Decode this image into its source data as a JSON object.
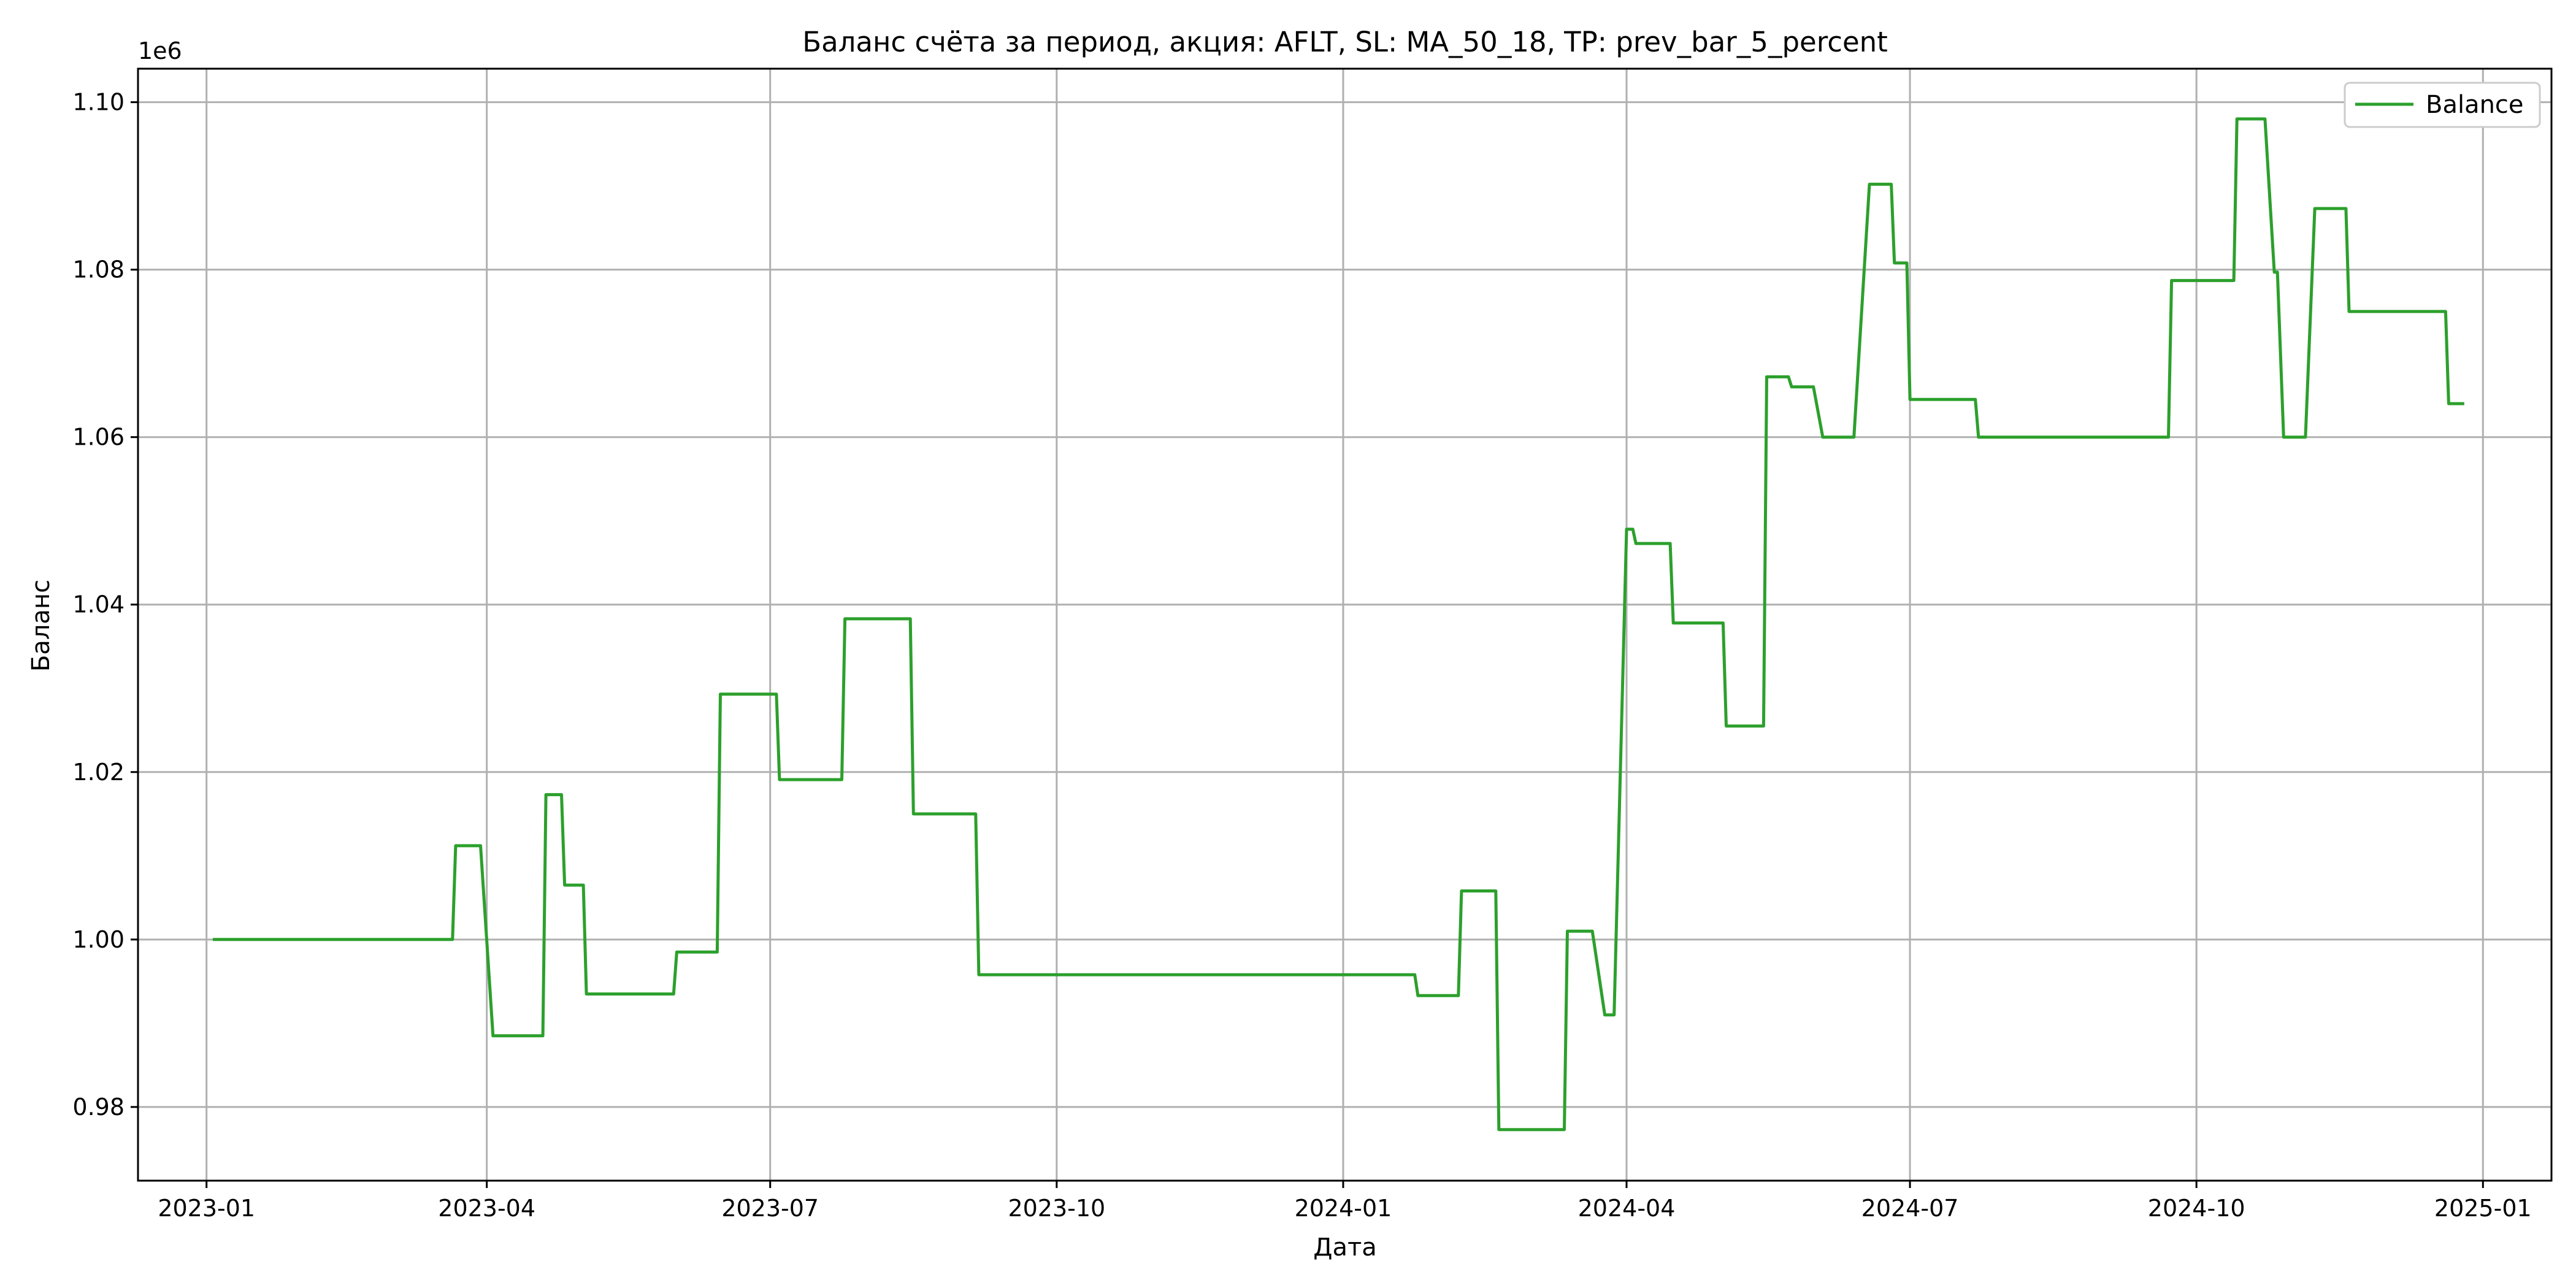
{
  "chart_data": {
    "type": "line",
    "title": "Баланс счёта за период, акция: AFLT, SL: MA_50_18, TP: prev_bar_5_percent",
    "xlabel": "Дата",
    "ylabel": "Баланс",
    "y_offset_label": "1e6",
    "x_ticks": [
      "2023-01",
      "2023-04",
      "2023-07",
      "2023-10",
      "2024-01",
      "2024-04",
      "2024-07",
      "2024-10",
      "2025-01"
    ],
    "y_ticks": [
      "0.98",
      "1.00",
      "1.02",
      "1.04",
      "1.06",
      "1.08",
      "1.10"
    ],
    "ylim": [
      0.9712,
      1.104
    ],
    "xlim": [
      "2022-12-10",
      "2025-01-23"
    ],
    "grid": true,
    "legend": {
      "placement": "top-right"
    },
    "series": [
      {
        "name": "Balance",
        "color": "#2ca02c",
        "points": [
          [
            "2023-01-03",
            1.0
          ],
          [
            "2023-03-21",
            1.0
          ],
          [
            "2023-03-22",
            1.0112
          ],
          [
            "2023-03-30",
            1.0112
          ],
          [
            "2023-04-03",
            0.9885
          ],
          [
            "2023-04-19",
            0.9885
          ],
          [
            "2023-04-20",
            1.0173
          ],
          [
            "2023-04-25",
            1.0173
          ],
          [
            "2023-04-26",
            1.0065
          ],
          [
            "2023-05-02",
            1.0065
          ],
          [
            "2023-05-03",
            0.9935
          ],
          [
            "2023-05-31",
            0.9935
          ],
          [
            "2023-06-01",
            0.9985
          ],
          [
            "2023-06-14",
            0.9985
          ],
          [
            "2023-06-15",
            1.0293
          ],
          [
            "2023-07-03",
            1.0293
          ],
          [
            "2023-07-04",
            1.0191
          ],
          [
            "2023-07-24",
            1.0191
          ],
          [
            "2023-07-25",
            1.0383
          ],
          [
            "2023-08-15",
            1.0383
          ],
          [
            "2023-08-16",
            1.015
          ],
          [
            "2023-09-05",
            1.015
          ],
          [
            "2023-09-06",
            0.9958
          ],
          [
            "2024-01-24",
            0.9958
          ],
          [
            "2024-01-25",
            0.9933
          ],
          [
            "2024-02-07",
            0.9933
          ],
          [
            "2024-02-08",
            1.0058
          ],
          [
            "2024-02-19",
            1.0058
          ],
          [
            "2024-02-20",
            0.9773
          ],
          [
            "2024-03-12",
            0.9773
          ],
          [
            "2024-03-13",
            1.001
          ],
          [
            "2024-03-21",
            1.001
          ],
          [
            "2024-03-25",
            0.991
          ],
          [
            "2024-03-28",
            0.991
          ],
          [
            "2024-04-01",
            1.049
          ],
          [
            "2024-04-03",
            1.049
          ],
          [
            "2024-04-04",
            1.0473
          ],
          [
            "2024-04-15",
            1.0473
          ],
          [
            "2024-04-16",
            1.0378
          ],
          [
            "2024-05-02",
            1.0378
          ],
          [
            "2024-05-03",
            1.0255
          ],
          [
            "2024-05-15",
            1.0255
          ],
          [
            "2024-05-16",
            1.0672
          ],
          [
            "2024-05-23",
            1.0672
          ],
          [
            "2024-05-24",
            1.066
          ],
          [
            "2024-05-31",
            1.066
          ],
          [
            "2024-06-03",
            1.06
          ],
          [
            "2024-06-13",
            1.06
          ],
          [
            "2024-06-18",
            1.0902
          ],
          [
            "2024-06-25",
            1.0902
          ],
          [
            "2024-06-26",
            1.0808
          ],
          [
            "2024-06-30",
            1.0808
          ],
          [
            "2024-07-01",
            1.0645
          ],
          [
            "2024-07-22",
            1.0645
          ],
          [
            "2024-07-23",
            1.06
          ],
          [
            "2024-09-22",
            1.06
          ],
          [
            "2024-09-23",
            1.0787
          ],
          [
            "2024-10-13",
            1.0787
          ],
          [
            "2024-10-14",
            1.098
          ],
          [
            "2024-10-23",
            1.098
          ],
          [
            "2024-10-26",
            1.0797
          ],
          [
            "2024-10-27",
            1.0797
          ],
          [
            "2024-10-29",
            1.06
          ],
          [
            "2024-11-05",
            1.06
          ],
          [
            "2024-11-08",
            1.0873
          ],
          [
            "2024-11-14",
            1.0873
          ],
          [
            "2024-11-15",
            1.0873
          ],
          [
            "2024-11-18",
            1.0873
          ],
          [
            "2024-11-19",
            1.075
          ],
          [
            "2024-12-20",
            1.075
          ],
          [
            "2024-12-21",
            1.064
          ],
          [
            "2024-12-26",
            1.064
          ]
        ]
      }
    ]
  }
}
